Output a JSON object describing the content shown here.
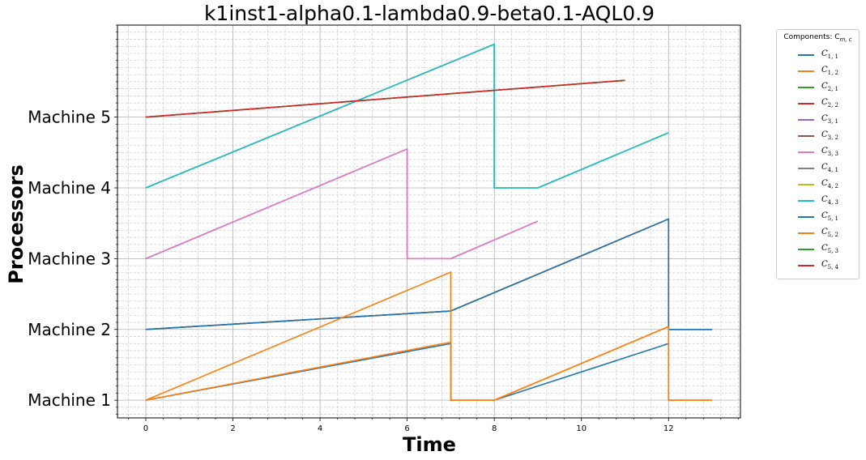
{
  "chart_data": {
    "type": "line",
    "title": "k1inst1-alpha0.1-lambda0.9-beta0.1-AQL0.9",
    "xlabel": "Time",
    "ylabel": "Processors",
    "xlim": [
      -0.65,
      13.65
    ],
    "ylim": [
      0.75,
      6.3
    ],
    "xticks": [
      0,
      2,
      4,
      6,
      8,
      10,
      12
    ],
    "xtick_labels": [
      "0",
      "2",
      "4",
      "6",
      "8",
      "10",
      "12"
    ],
    "yticks": [
      1,
      2,
      3,
      4,
      5
    ],
    "ytick_labels": [
      "Machine 1",
      "Machine 2",
      "Machine 3",
      "Machine 4",
      "Machine 5"
    ],
    "grid": true,
    "minor_grid": true,
    "legend_title": "Components: C",
    "legend_title_sub": "m, c",
    "legend_position": "outside-right",
    "series": [
      {
        "sym": "C",
        "sub": "1, 1",
        "color": "#1f77b4",
        "x": [
          0,
          7,
          7,
          8,
          12,
          12,
          13
        ],
        "y": [
          1,
          1.8,
          1,
          1,
          1.8,
          1,
          1
        ]
      },
      {
        "sym": "C",
        "sub": "1, 2",
        "color": "#ff7f0e",
        "x": [
          0,
          7,
          7,
          8,
          12,
          12,
          13
        ],
        "y": [
          1,
          1.82,
          1,
          1,
          2.04,
          1,
          1
        ]
      },
      {
        "sym": "C",
        "sub": "2, 1",
        "color": "#2ca02c",
        "x": [
          0,
          7,
          12,
          12,
          13
        ],
        "y": [
          2,
          2.26,
          3.56,
          2,
          2
        ]
      },
      {
        "sym": "C",
        "sub": "2, 2",
        "color": "#d62728",
        "x": [
          0,
          7,
          12,
          12,
          13
        ],
        "y": [
          2,
          2.26,
          3.56,
          2,
          2
        ]
      },
      {
        "sym": "C",
        "sub": "3, 1",
        "color": "#9467bd",
        "x": [
          0,
          6,
          6,
          7,
          9
        ],
        "y": [
          3,
          4.55,
          3,
          3,
          3.53
        ]
      },
      {
        "sym": "C",
        "sub": "3, 2",
        "color": "#8c564b",
        "x": [
          0,
          11
        ],
        "y": [
          5,
          5.52
        ]
      },
      {
        "sym": "C",
        "sub": "3, 3",
        "color": "#e377c2",
        "x": [
          0,
          6,
          6,
          7,
          9
        ],
        "y": [
          3,
          4.55,
          3,
          3,
          3.53
        ]
      },
      {
        "sym": "C",
        "sub": "4, 1",
        "color": "#7f7f7f",
        "x": [
          0,
          8,
          8,
          9,
          12
        ],
        "y": [
          4,
          6.03,
          4,
          4,
          4.78
        ]
      },
      {
        "sym": "C",
        "sub": "4, 2",
        "color": "#bcbd22",
        "x": [
          0,
          8,
          8,
          9,
          12
        ],
        "y": [
          4,
          6.03,
          4,
          4,
          4.78
        ]
      },
      {
        "sym": "C",
        "sub": "4, 3",
        "color": "#17becf",
        "x": [
          0,
          8,
          8,
          9,
          12
        ],
        "y": [
          4,
          6.03,
          4,
          4,
          4.78
        ]
      },
      {
        "sym": "C",
        "sub": "5, 1",
        "color": "#1f77b4",
        "x": [
          0,
          7,
          12,
          12,
          13
        ],
        "y": [
          2,
          2.26,
          3.56,
          2,
          2
        ]
      },
      {
        "sym": "C",
        "sub": "5, 2",
        "color": "#ff7f0e",
        "x": [
          0,
          7,
          7,
          8,
          12,
          12,
          13
        ],
        "y": [
          1,
          2.81,
          1,
          1,
          2.04,
          1,
          1
        ]
      },
      {
        "sym": "C",
        "sub": "5, 3",
        "color": "#2ca02c",
        "x": [
          0,
          11
        ],
        "y": [
          5,
          5.52
        ]
      },
      {
        "sym": "C",
        "sub": "5, 4",
        "color": "#d62728",
        "x": [
          0,
          11
        ],
        "y": [
          5,
          5.52
        ]
      }
    ]
  }
}
